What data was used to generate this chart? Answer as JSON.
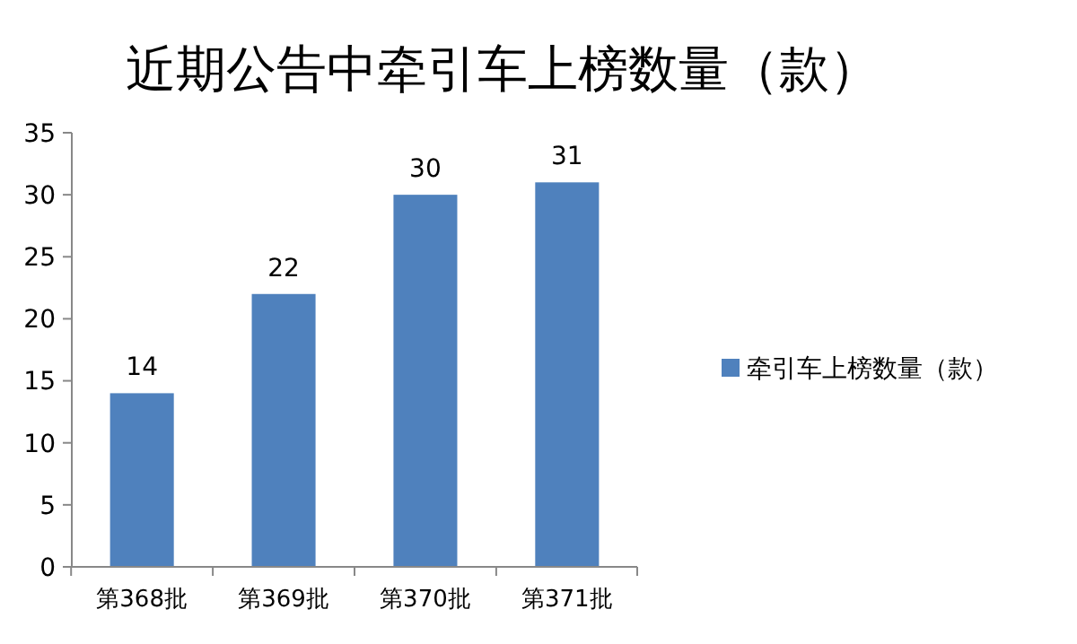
{
  "chart_data": {
    "type": "bar",
    "title": "近期公告中牵引车上榜数量（款）",
    "categories": [
      "第368批",
      "第369批",
      "第370批",
      "第371批"
    ],
    "series": [
      {
        "name": "牵引车上榜数量（款）",
        "color": "#4f81bd",
        "values": [
          14,
          22,
          30,
          31
        ]
      }
    ],
    "ylim": [
      0,
      35
    ],
    "yticks": [
      0,
      5,
      10,
      15,
      20,
      25,
      30,
      35
    ],
    "data_labels": true,
    "legend": "right",
    "grid": false
  }
}
